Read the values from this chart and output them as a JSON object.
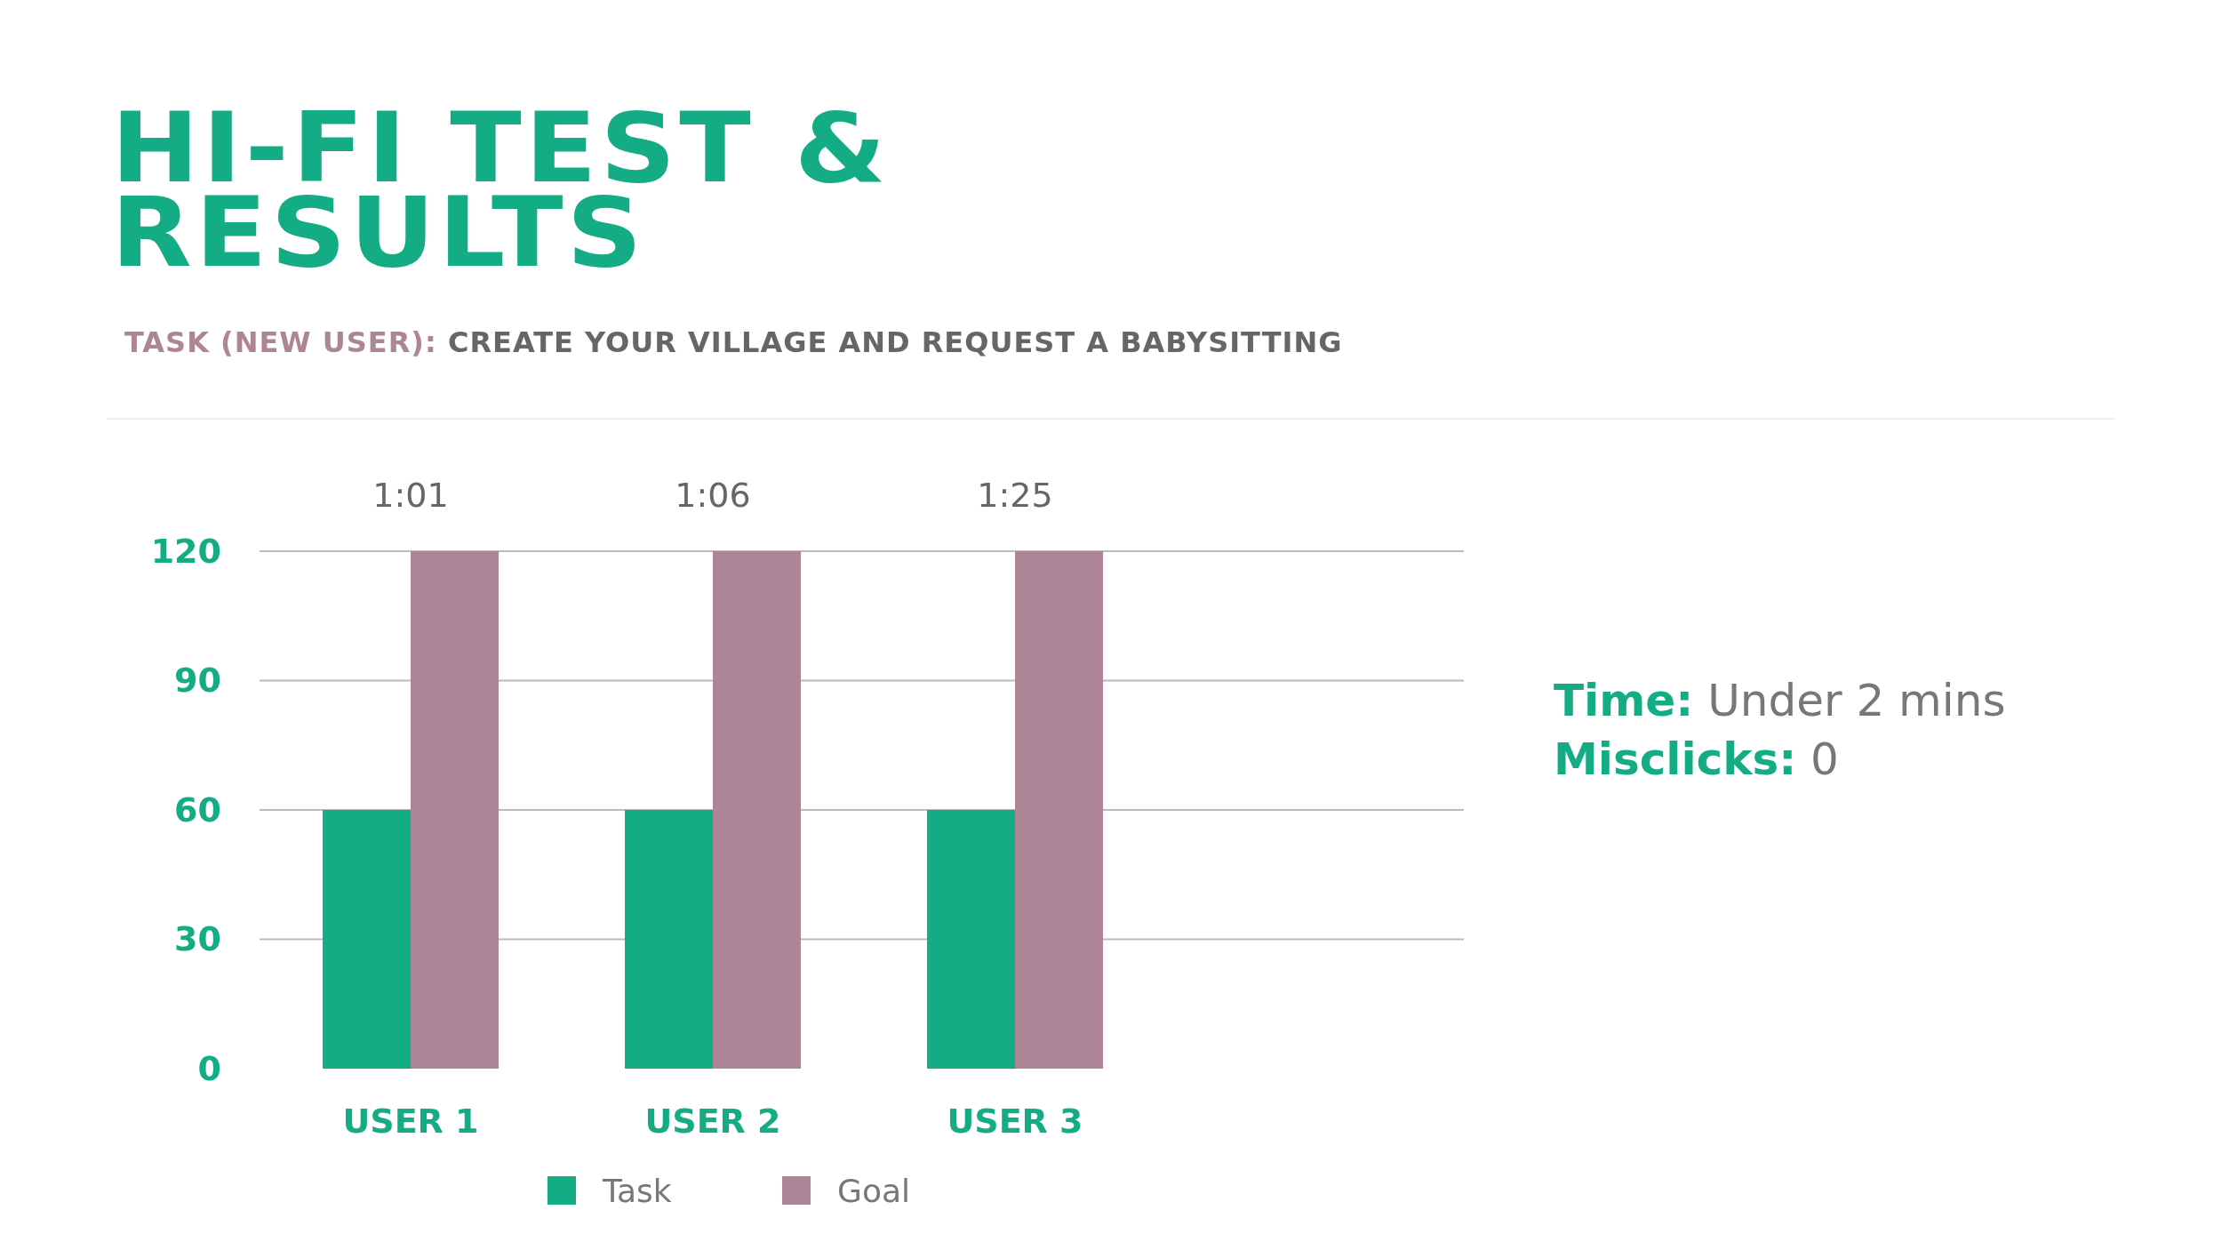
{
  "chart_data": {
    "type": "bar",
    "title": "HI-FI TEST & RESULTS",
    "subtitle": "TASK (NEW USER): CREATE YOUR VILLAGE AND REQUEST A BABYSITTING",
    "categories": [
      "USER 1",
      "USER 2",
      "USER 3"
    ],
    "series": [
      {
        "name": "Task",
        "color": "#13ac84",
        "values": [
          60,
          60,
          60
        ]
      },
      {
        "name": "Goal",
        "color": "#ad8596",
        "values": [
          120,
          120,
          120
        ]
      }
    ],
    "ylim": [
      0,
      120
    ],
    "yticks": [
      0,
      30,
      60,
      90,
      120
    ],
    "grid": "y",
    "legend": "bottom",
    "annotations": [
      {
        "text": "1:01",
        "x": "USER 1",
        "y": 120
      },
      {
        "text": "1:06",
        "x": "USER 2",
        "y": 120
      },
      {
        "text": "1:25",
        "x": "USER 3",
        "y": 120
      },
      "Time: Under 2 mins",
      "Misclicks: 0"
    ]
  }
}
